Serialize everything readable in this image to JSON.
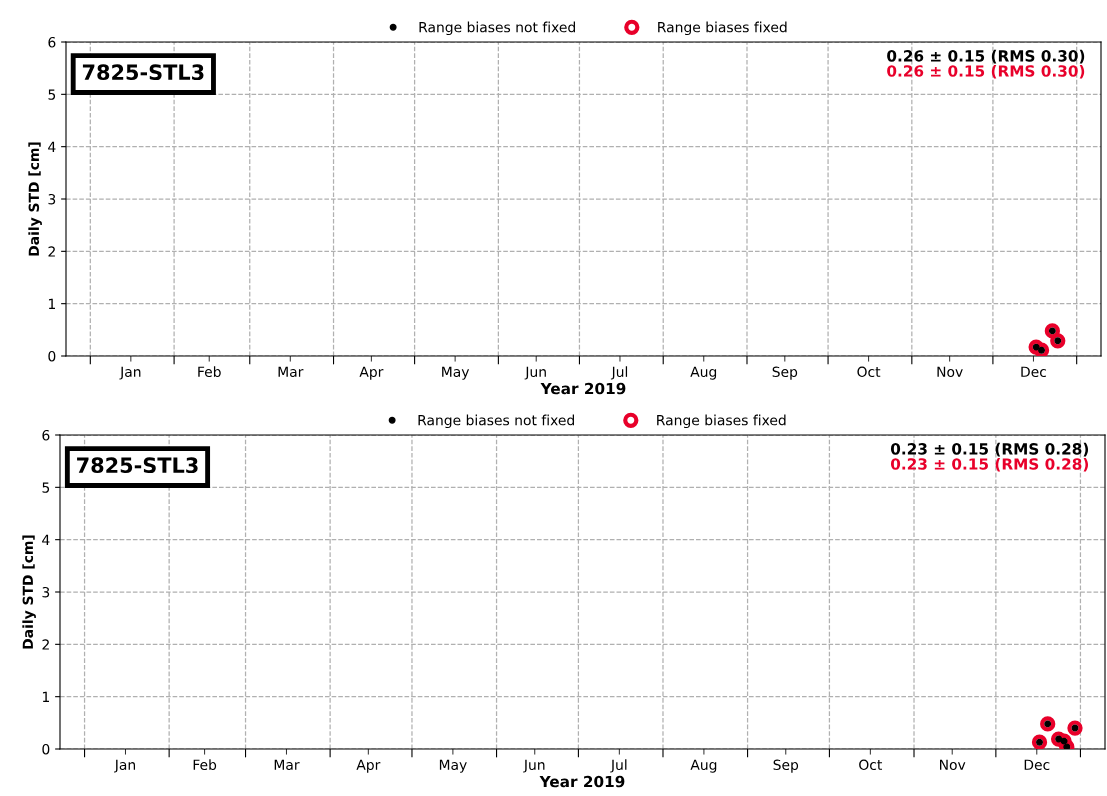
{
  "chart_data": [
    {
      "type": "scatter",
      "xlabel": "Year 2019",
      "ylabel": "Daily STD [cm]",
      "xlim": [
        "2018-12-23",
        "2020-01-10"
      ],
      "ylim": [
        0,
        6
      ],
      "yticks": [
        0,
        1,
        2,
        3,
        4,
        5,
        6
      ],
      "xticks": [
        {
          "value": "2019-01-01",
          "label": null
        },
        {
          "value": "2019-02-01",
          "label": null
        },
        {
          "value": "2019-03-01",
          "label": null
        },
        {
          "value": "2019-04-01",
          "label": null
        },
        {
          "value": "2019-05-01",
          "label": null
        },
        {
          "value": "2019-06-01",
          "label": null
        },
        {
          "value": "2019-07-01",
          "label": null
        },
        {
          "value": "2019-08-01",
          "label": null
        },
        {
          "value": "2019-09-01",
          "label": null
        },
        {
          "value": "2019-10-01",
          "label": null
        },
        {
          "value": "2019-11-01",
          "label": null
        },
        {
          "value": "2019-12-01",
          "label": null
        },
        {
          "value": "2020-01-01",
          "label": null
        },
        {
          "value": "2019-01-16",
          "label": "Jan"
        },
        {
          "value": "2019-02-14",
          "label": "Feb"
        },
        {
          "value": "2019-03-16",
          "label": "Mar"
        },
        {
          "value": "2019-04-15",
          "label": "Apr"
        },
        {
          "value": "2019-05-16",
          "label": "May"
        },
        {
          "value": "2019-06-15",
          "label": "Jun"
        },
        {
          "value": "2019-07-16",
          "label": "Jul"
        },
        {
          "value": "2019-08-16",
          "label": "Aug"
        },
        {
          "value": "2019-09-15",
          "label": "Sep"
        },
        {
          "value": "2019-10-16",
          "label": "Oct"
        },
        {
          "value": "2019-11-15",
          "label": "Nov"
        },
        {
          "value": "2019-12-16",
          "label": "Dec"
        }
      ],
      "grid": true,
      "legend": "top",
      "marker": "circle",
      "annotations": [
        "7825-STL3",
        "0.26 ± 0.15 (RMS 0.30)",
        "0.26 ± 0.15 (RMS 0.30)"
      ],
      "series": [
        {
          "name": "Range biases not fixed",
          "color": "#000000",
          "x": [
            "2019-12-17",
            "2019-12-19",
            "2019-12-23",
            "2019-12-25"
          ],
          "values": [
            0.17,
            0.11,
            0.48,
            0.29
          ]
        },
        {
          "name": "Range biases fixed",
          "color": "#e8002a",
          "x": [
            "2019-12-17",
            "2019-12-19",
            "2019-12-23",
            "2019-12-25"
          ],
          "values": [
            0.17,
            0.11,
            0.48,
            0.29
          ]
        }
      ]
    },
    {
      "type": "scatter",
      "xlabel": "Year 2019",
      "ylabel": "Daily STD [cm]",
      "xlim": [
        "2018-12-23",
        "2020-01-10"
      ],
      "ylim": [
        0,
        6
      ],
      "yticks": [
        0,
        1,
        2,
        3,
        4,
        5,
        6
      ],
      "xticks": [
        {
          "value": "2019-01-01",
          "label": null
        },
        {
          "value": "2019-02-01",
          "label": null
        },
        {
          "value": "2019-03-01",
          "label": null
        },
        {
          "value": "2019-04-01",
          "label": null
        },
        {
          "value": "2019-05-01",
          "label": null
        },
        {
          "value": "2019-06-01",
          "label": null
        },
        {
          "value": "2019-07-01",
          "label": null
        },
        {
          "value": "2019-08-01",
          "label": null
        },
        {
          "value": "2019-09-01",
          "label": null
        },
        {
          "value": "2019-10-01",
          "label": null
        },
        {
          "value": "2019-11-01",
          "label": null
        },
        {
          "value": "2019-12-01",
          "label": null
        },
        {
          "value": "2020-01-01",
          "label": null
        },
        {
          "value": "2019-01-16",
          "label": "Jan"
        },
        {
          "value": "2019-02-14",
          "label": "Feb"
        },
        {
          "value": "2019-03-16",
          "label": "Mar"
        },
        {
          "value": "2019-04-15",
          "label": "Apr"
        },
        {
          "value": "2019-05-16",
          "label": "May"
        },
        {
          "value": "2019-06-15",
          "label": "Jun"
        },
        {
          "value": "2019-07-16",
          "label": "Jul"
        },
        {
          "value": "2019-08-16",
          "label": "Aug"
        },
        {
          "value": "2019-09-15",
          "label": "Sep"
        },
        {
          "value": "2019-10-16",
          "label": "Oct"
        },
        {
          "value": "2019-11-15",
          "label": "Nov"
        },
        {
          "value": "2019-12-16",
          "label": "Dec"
        }
      ],
      "grid": true,
      "legend": "top",
      "marker": "circle",
      "annotations": [
        "7825-STL3",
        "0.23 ± 0.15 (RMS 0.28)",
        "0.23 ± 0.15 (RMS 0.28)"
      ],
      "series": [
        {
          "name": "Range biases not fixed",
          "color": "#000000",
          "x": [
            "2019-12-17",
            "2019-12-20",
            "2019-12-24",
            "2019-12-26",
            "2019-12-27",
            "2019-12-30"
          ],
          "values": [
            0.13,
            0.48,
            0.19,
            0.15,
            0.04,
            0.4
          ]
        },
        {
          "name": "Range biases fixed",
          "color": "#e8002a",
          "x": [
            "2019-12-17",
            "2019-12-20",
            "2019-12-24",
            "2019-12-26",
            "2019-12-27",
            "2019-12-30"
          ],
          "values": [
            0.13,
            0.48,
            0.19,
            0.15,
            0.04,
            0.4
          ]
        }
      ]
    }
  ]
}
